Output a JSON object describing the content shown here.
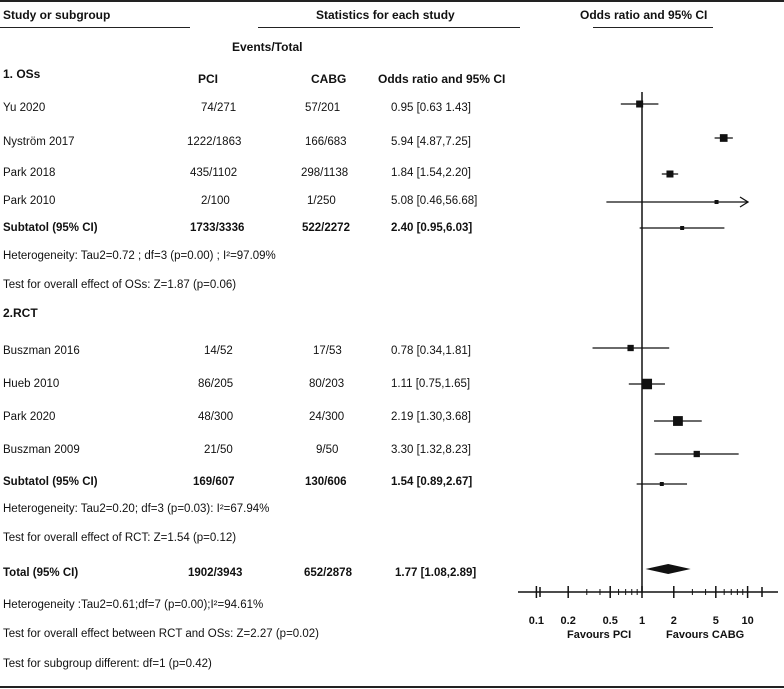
{
  "header": {
    "study_or_subgroup": "Study or subgroup",
    "statistics": "Statistics for each study",
    "or_ci": "Odds ratio and 95% CI",
    "events_total": "Events/Total"
  },
  "columns": {
    "pci": "PCI",
    "cabg": "CABG",
    "or_ci": "Odds ratio and 95% CI"
  },
  "groups": [
    {
      "label": "1. OSs",
      "studies": [
        {
          "name": "Yu 2020",
          "pci": "74/271",
          "cabg": "57/201",
          "or_text": "0.95 [0.63 1.43]"
        },
        {
          "name": "Nyström 2017",
          "pci": "1222/1863",
          "cabg": "166/683",
          "or_text": "5.94 [4.87,7.25]"
        },
        {
          "name": "Park 2018",
          "pci": "435/1102",
          "cabg": "298/1138",
          "or_text": "1.84 [1.54,2.20]"
        },
        {
          "name": "Park 2010",
          "pci": "2/100",
          "cabg": "1/250",
          "or_text": "5.08 [0.46,56.68]"
        }
      ],
      "subtotal": {
        "name": "Subtatol (95% CI)",
        "pci": "1733/3336",
        "cabg": "522/2272",
        "or_text": "2.40 [0.95,6.03]"
      },
      "heterogeneity": "Heterogeneity: Tau2=0.72 ; df=3 (p=0.00) ; I²=97.09%",
      "overall_effect": "Test for overall effect of OSs: Z=1.87 (p=0.06)"
    },
    {
      "label": "2.RCT",
      "studies": [
        {
          "name": "Buszman 2016",
          "pci": "14/52",
          "cabg": "17/53",
          "or_text": "0.78 [0.34,1.81]"
        },
        {
          "name": "Hueb 2010",
          "pci": "86/205",
          "cabg": "80/203",
          "or_text": "1.11 [0.75,1.65]"
        },
        {
          "name": "Park 2020",
          "pci": "48/300",
          "cabg": "24/300",
          "or_text": "2.19 [1.30,3.68]"
        },
        {
          "name": "Buszman 2009",
          "pci": "21/50",
          "cabg": "9/50",
          "or_text": "3.30 [1.32,8.23]"
        }
      ],
      "subtotal": {
        "name": "Subtatol (95% CI)",
        "pci": "169/607",
        "cabg": "130/606",
        "or_text": "1.54 [0.89,2.67]"
      },
      "heterogeneity": "Heterogeneity: Tau2=0.20; df=3 (p=0.03): I²=67.94%",
      "overall_effect": "Test for overall effect of RCT: Z=1.54 (p=0.12)"
    }
  ],
  "total": {
    "name": "Total (95% CI)",
    "pci": "1902/3943",
    "cabg": "652/2878",
    "or_text": "1.77 [1.08,2.89]"
  },
  "total_heterogeneity": "Heterogeneity :Tau2=0.61;df=7 (p=0.00);I²=94.61%",
  "total_overall_effect": "Test for overall effect between RCT and OSs: Z=2.27 (p=0.02)",
  "subgroup_test": "Test for subgroup different: df=1 (p=0.42)",
  "chart_data": {
    "type": "forest",
    "x_scale": "log",
    "xlim": [
      0.07,
      14
    ],
    "null_line": 1,
    "tick_labels": [
      "0.1",
      "0.2",
      "0.5",
      "1",
      "2",
      "5",
      "10"
    ],
    "tick_values": [
      0.1,
      0.2,
      0.5,
      1,
      2,
      5,
      10
    ],
    "xlabel_left": "Favours PCI",
    "xlabel_right": "Favours CABG",
    "rows": [
      {
        "study": "Yu 2020",
        "or": 0.95,
        "lo": 0.63,
        "hi": 1.43,
        "kind": "study",
        "weight": 1.0
      },
      {
        "study": "Nyström 2017",
        "or": 5.94,
        "lo": 4.87,
        "hi": 7.25,
        "kind": "study",
        "weight": 1.1
      },
      {
        "study": "Park 2018",
        "or": 1.84,
        "lo": 1.54,
        "hi": 2.2,
        "kind": "study",
        "weight": 1.0
      },
      {
        "study": "Park 2010",
        "or": 5.08,
        "lo": 0.46,
        "hi": 56.68,
        "kind": "study",
        "weight": 0.5,
        "arrow_right": true
      },
      {
        "study": "Subtatol (95% CI)",
        "or": 2.4,
        "lo": 0.95,
        "hi": 6.03,
        "kind": "subtotal",
        "weight": 0.5
      },
      {
        "study": "Buszman 2016",
        "or": 0.78,
        "lo": 0.34,
        "hi": 1.81,
        "kind": "study",
        "weight": 0.9
      },
      {
        "study": "Hueb 2010",
        "or": 1.11,
        "lo": 0.75,
        "hi": 1.65,
        "kind": "study",
        "weight": 1.5
      },
      {
        "study": "Park 2020",
        "or": 2.19,
        "lo": 1.3,
        "hi": 3.68,
        "kind": "study",
        "weight": 1.4
      },
      {
        "study": "Buszman 2009",
        "or": 3.3,
        "lo": 1.32,
        "hi": 8.23,
        "kind": "study",
        "weight": 0.9
      },
      {
        "study": "Subtatol (95% CI)",
        "or": 1.54,
        "lo": 0.89,
        "hi": 2.67,
        "kind": "subtotal",
        "weight": 0.5
      },
      {
        "study": "Total (95% CI)",
        "or": 1.77,
        "lo": 1.08,
        "hi": 2.89,
        "kind": "total"
      }
    ]
  }
}
